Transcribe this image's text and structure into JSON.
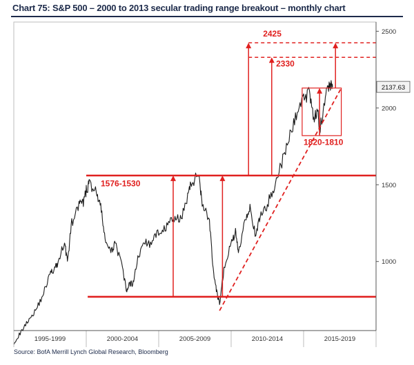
{
  "title": "Chart 75: S&P 500 – 2000 to 2013 secular trading range breakout – monthly chart",
  "source": "Source: BofA Merrill Lynch Global Research, Bloomberg",
  "colors": {
    "price": "#1a1a1a",
    "annotation": "#e0201f",
    "axis": "#555555",
    "title": "#1c2a4a",
    "last_label_bg": "#f3f3f3"
  },
  "chart_data": {
    "type": "line",
    "title": "Chart 75: S&P 500 – 2000 to 2013 secular trading range breakout – monthly chart",
    "xlabel": "",
    "ylabel": "",
    "x_tick_labels": [
      "1995-1999",
      "2000-2004",
      "2005-2009",
      "2010-2014",
      "2015-2019"
    ],
    "y_ticks": [
      1000,
      1500,
      2000,
      2500
    ],
    "xlim": [
      1995.0,
      2020.0
    ],
    "ylim": [
      550,
      2560
    ],
    "grid": "vertical separators between period labels",
    "series": [
      {
        "type": "line",
        "x": [
          1995.0,
          1995.5,
          1996.0,
          1996.5,
          1997.0,
          1997.5,
          1997.8,
          1998.0,
          1998.5,
          1998.7,
          1999.0,
          1999.5,
          1999.8,
          2000.0,
          2000.2,
          2000.7,
          2001.0,
          2001.3,
          2001.7,
          2002.0,
          2002.5,
          2002.8,
          2003.0,
          2003.2,
          2003.5,
          2004.0,
          2004.5,
          2005.0,
          2005.5,
          2006.0,
          2006.5,
          2007.0,
          2007.3,
          2007.8,
          2008.0,
          2008.5,
          2008.8,
          2009.0,
          2009.2,
          2009.5,
          2010.0,
          2010.3,
          2010.5,
          2011.0,
          2011.3,
          2011.7,
          2012.0,
          2012.5,
          2013.0,
          2013.5,
          2014.0,
          2014.5,
          2015.0,
          2015.4,
          2015.7,
          2016.0,
          2016.1,
          2016.5,
          2016.8,
          2017.0
        ],
        "y": [
          470,
          540,
          620,
          680,
          780,
          920,
          950,
          980,
          1130,
          1000,
          1250,
          1370,
          1380,
          1460,
          1510,
          1450,
          1350,
          1150,
          1050,
          1130,
          950,
          800,
          860,
          850,
          1000,
          1130,
          1110,
          1200,
          1220,
          1280,
          1270,
          1430,
          1520,
          1560,
          1380,
          1270,
          900,
          800,
          720,
          950,
          1120,
          1190,
          1060,
          1290,
          1360,
          1150,
          1300,
          1370,
          1500,
          1640,
          1800,
          1960,
          2060,
          2110,
          1950,
          1950,
          1830,
          2100,
          2150,
          2137.63
        ]
      }
    ],
    "annotations": {
      "resistance_label": "1576-1530",
      "resistance_level": 1560,
      "support_level": 770,
      "support_from_x": 2000.1,
      "breakout_x": 2013.4,
      "targets": [
        "2425",
        "2330"
      ],
      "target_levels": [
        2425,
        2330
      ],
      "recent_range_label": "1820-1810",
      "recent_range_high": 2130,
      "recent_range_low": 1820,
      "recent_range_x": [
        2014.9,
        2017.6
      ],
      "trend_line": [
        [
          2009.2,
          680
        ],
        [
          2017.6,
          2130
        ]
      ],
      "last_value_label": "2137.63",
      "last_value": 2137.63
    }
  }
}
